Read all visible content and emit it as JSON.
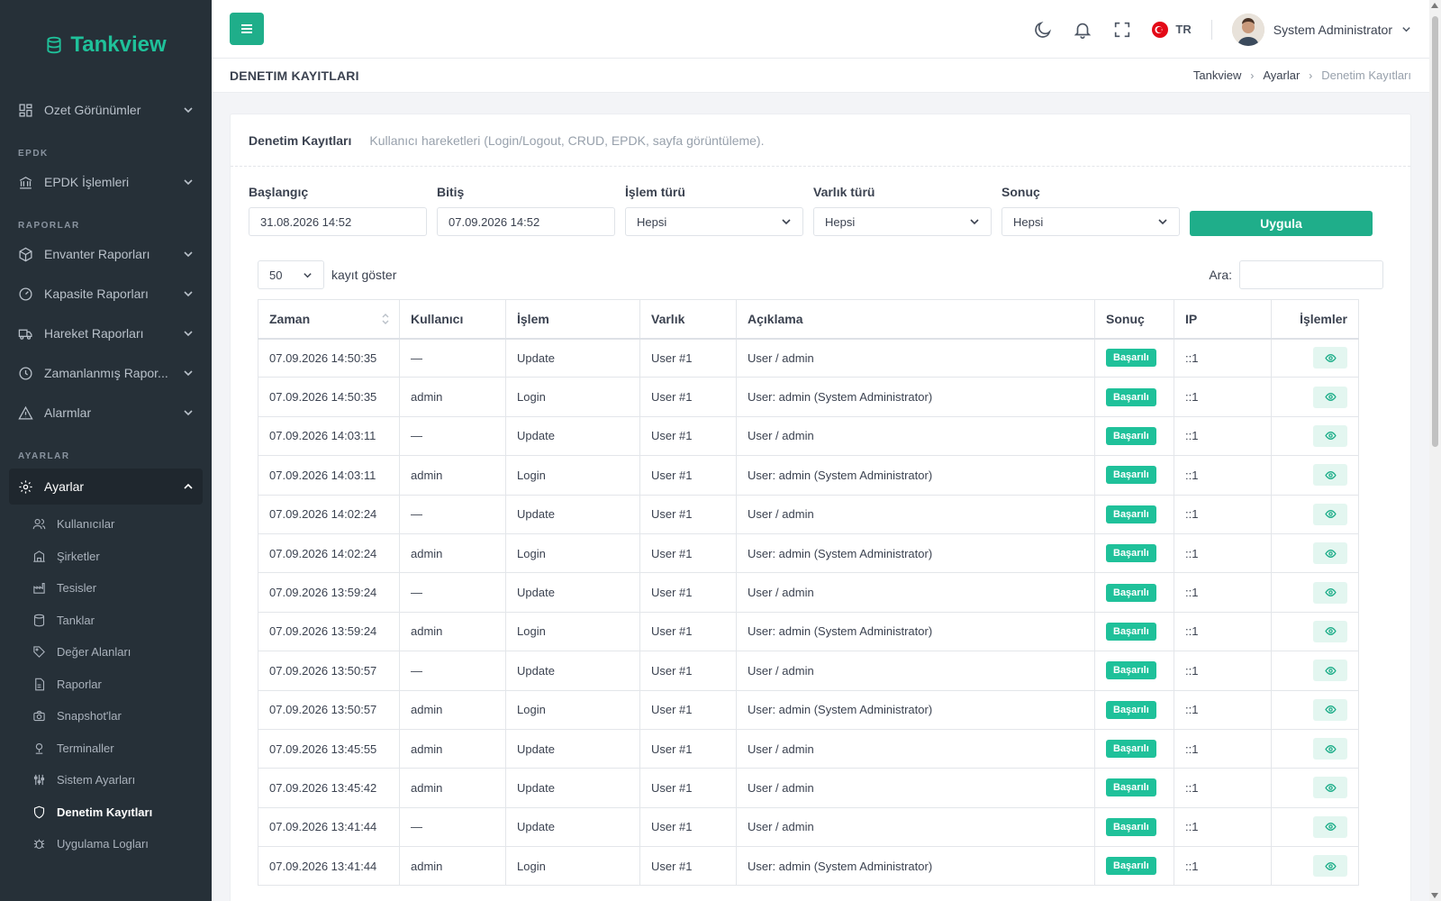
{
  "brand": {
    "name": "Tankview",
    "color": "#1fc19a"
  },
  "sidebar": {
    "top_items": [
      {
        "label": "Ozet Görünümler",
        "icon": "dashboard-icon"
      }
    ],
    "sections": {
      "epdk": {
        "title": "EPDK",
        "items": [
          {
            "label": "EPDK İşlemleri",
            "icon": "bank-icon"
          }
        ]
      },
      "raporlar": {
        "title": "RAPORLAR",
        "items": [
          {
            "label": "Envanter Raporları",
            "icon": "box-icon"
          },
          {
            "label": "Kapasite Raporları",
            "icon": "gauge-icon"
          },
          {
            "label": "Hareket Raporları",
            "icon": "truck-icon"
          },
          {
            "label": "Zamanlanmış Rapor...",
            "icon": "clock-icon"
          },
          {
            "label": "Alarmlar",
            "icon": "alert-icon"
          }
        ]
      },
      "ayarlar": {
        "title": "AYARLAR",
        "active_label": "Ayarlar"
      }
    },
    "submenu": [
      {
        "label": "Kullanıcılar",
        "icon": "users-icon"
      },
      {
        "label": "Şirketler",
        "icon": "building-icon"
      },
      {
        "label": "Tesisler",
        "icon": "factory-icon"
      },
      {
        "label": "Tanklar",
        "icon": "database-icon"
      },
      {
        "label": "Değer Alanları",
        "icon": "tag-icon"
      },
      {
        "label": "Raporlar",
        "icon": "report-icon"
      },
      {
        "label": "Snapshot'lar",
        "icon": "camera-icon"
      },
      {
        "label": "Terminaller",
        "icon": "terminal-icon"
      },
      {
        "label": "Sistem Ayarları",
        "icon": "sliders-icon"
      },
      {
        "label": "Denetim Kayıtları",
        "icon": "shield-icon"
      },
      {
        "label": "Uygulama Logları",
        "icon": "bug-icon"
      }
    ]
  },
  "topbar": {
    "lang": "TR",
    "user_name": "System Administrator"
  },
  "pagebar": {
    "title": "DENETIM KAYITLARI",
    "breadcrumb": [
      "Tankview",
      "Ayarlar",
      "Denetim Kayıtları"
    ]
  },
  "card": {
    "title": "Denetim Kayıtları",
    "subtitle": "Kullanıcı hareketleri (Login/Logout, CRUD, EPDK, sayfa görüntüleme).",
    "filters": {
      "start_label": "Başlangıç",
      "start_value": "31.08.2026 14:52",
      "end_label": "Bitiş",
      "end_value": "07.09.2026 14:52",
      "op_label": "İşlem türü",
      "op_value": "Hepsi",
      "entity_label": "Varlık türü",
      "entity_value": "Hepsi",
      "result_label": "Sonuç",
      "result_value": "Hepsi",
      "apply_label": "Uygula"
    },
    "length_value": "50",
    "length_label": "kayıt göster",
    "search_label": "Ara:"
  },
  "table": {
    "headers": [
      "Zaman",
      "Kullanıcı",
      "İşlem",
      "Varlık",
      "Açıklama",
      "Sonuç",
      "IP",
      "İşlemler"
    ],
    "rows": [
      {
        "time": "07.09.2026 14:50:35",
        "user": "—",
        "op": "Update",
        "entity": "User #1",
        "desc": "User / admin",
        "result": "Başarılı",
        "ip": "::1"
      },
      {
        "time": "07.09.2026 14:50:35",
        "user": "admin",
        "op": "Login",
        "entity": "User #1",
        "desc": "User: admin (System Administrator)",
        "result": "Başarılı",
        "ip": "::1"
      },
      {
        "time": "07.09.2026 14:03:11",
        "user": "—",
        "op": "Update",
        "entity": "User #1",
        "desc": "User / admin",
        "result": "Başarılı",
        "ip": "::1"
      },
      {
        "time": "07.09.2026 14:03:11",
        "user": "admin",
        "op": "Login",
        "entity": "User #1",
        "desc": "User: admin (System Administrator)",
        "result": "Başarılı",
        "ip": "::1"
      },
      {
        "time": "07.09.2026 14:02:24",
        "user": "—",
        "op": "Update",
        "entity": "User #1",
        "desc": "User / admin",
        "result": "Başarılı",
        "ip": "::1"
      },
      {
        "time": "07.09.2026 14:02:24",
        "user": "admin",
        "op": "Login",
        "entity": "User #1",
        "desc": "User: admin (System Administrator)",
        "result": "Başarılı",
        "ip": "::1"
      },
      {
        "time": "07.09.2026 13:59:24",
        "user": "—",
        "op": "Update",
        "entity": "User #1",
        "desc": "User / admin",
        "result": "Başarılı",
        "ip": "::1"
      },
      {
        "time": "07.09.2026 13:59:24",
        "user": "admin",
        "op": "Login",
        "entity": "User #1",
        "desc": "User: admin (System Administrator)",
        "result": "Başarılı",
        "ip": "::1"
      },
      {
        "time": "07.09.2026 13:50:57",
        "user": "—",
        "op": "Update",
        "entity": "User #1",
        "desc": "User / admin",
        "result": "Başarılı",
        "ip": "::1"
      },
      {
        "time": "07.09.2026 13:50:57",
        "user": "admin",
        "op": "Login",
        "entity": "User #1",
        "desc": "User: admin (System Administrator)",
        "result": "Başarılı",
        "ip": "::1"
      },
      {
        "time": "07.09.2026 13:45:55",
        "user": "admin",
        "op": "Update",
        "entity": "User #1",
        "desc": "User / admin",
        "result": "Başarılı",
        "ip": "::1"
      },
      {
        "time": "07.09.2026 13:45:42",
        "user": "admin",
        "op": "Update",
        "entity": "User #1",
        "desc": "User / admin",
        "result": "Başarılı",
        "ip": "::1"
      },
      {
        "time": "07.09.2026 13:41:44",
        "user": "—",
        "op": "Update",
        "entity": "User #1",
        "desc": "User / admin",
        "result": "Başarılı",
        "ip": "::1"
      },
      {
        "time": "07.09.2026 13:41:44",
        "user": "admin",
        "op": "Login",
        "entity": "User #1",
        "desc": "User: admin (System Administrator)",
        "result": "Başarılı",
        "ip": "::1"
      }
    ]
  },
  "colors": {
    "accent": "#1fae8a",
    "sidebar_bg": "#263038",
    "success": "#1fc19a"
  }
}
